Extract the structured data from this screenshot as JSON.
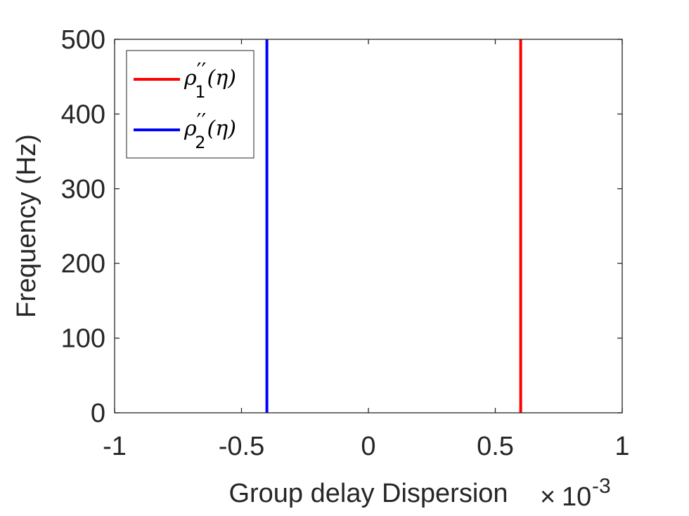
{
  "chart_data": {
    "type": "line",
    "title": "",
    "xlabel": "Group delay Dispersion",
    "ylabel": "Frequency (Hz)",
    "xlim": [
      -0.001,
      0.001
    ],
    "ylim": [
      0,
      500
    ],
    "x_exponent_label": {
      "times": "×",
      "base": "10",
      "exponent": "-3"
    },
    "xticks": [
      -0.001,
      -0.0005,
      0,
      0.0005,
      0.001
    ],
    "xtick_labels": [
      "-1",
      "-0.5",
      "0",
      "0.5",
      "1"
    ],
    "yticks": [
      0,
      100,
      200,
      300,
      400,
      500
    ],
    "ytick_labels": [
      "0",
      "100",
      "200",
      "300",
      "400",
      "500"
    ],
    "grid": false,
    "legend_position": "top-left",
    "series": [
      {
        "name": "ρ''₁(η)",
        "legend": {
          "sym": "ρ",
          "prime": "′′",
          "sub": "1",
          "arg": "(η)"
        },
        "color": "#ff0000",
        "x": [
          0.0006,
          0.0006
        ],
        "y": [
          0,
          510
        ]
      },
      {
        "name": "ρ''₂(η)",
        "legend": {
          "sym": "ρ",
          "prime": "′′",
          "sub": "2",
          "arg": "(η)"
        },
        "color": "#0000ff",
        "x": [
          -0.0004,
          -0.0004
        ],
        "y": [
          0,
          510
        ]
      }
    ]
  }
}
